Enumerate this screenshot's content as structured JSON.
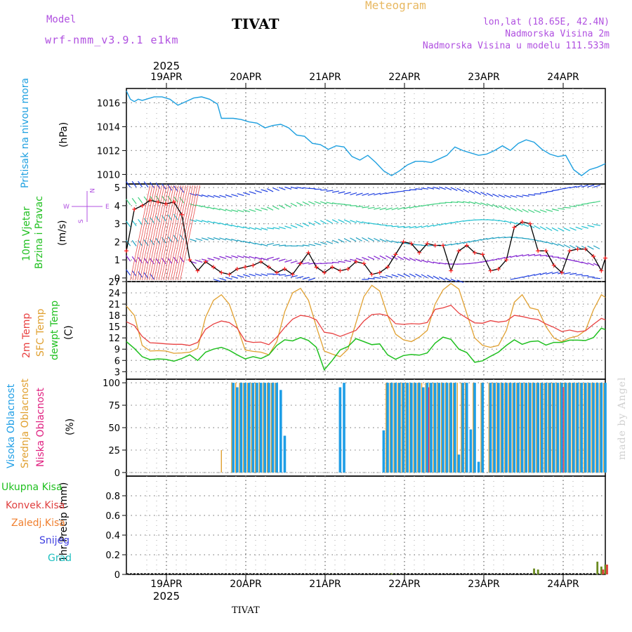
{
  "header": {
    "meteogram": "Meteogram",
    "title": "TIVAT",
    "model_label": "Model",
    "model_name": "wrf-nmm_v3.9.1 e1km",
    "lonlat": "lon,lat (18.65E, 42.4N)",
    "elev_station": "Nadmorska Visina 2m",
    "elev_model": "Nadmorska Visina u modelu 111.533m"
  },
  "footer": {
    "station": "TIVAT",
    "watermark": "made by Angel"
  },
  "panels": {
    "pressure": {
      "label": "Pritisak na nivou mora",
      "unit": "(hPa)"
    },
    "wind": {
      "label1": "10m Vjetar",
      "label2": "Brzina i Pravac",
      "unit": "(m/s)",
      "compass_w": "W",
      "compass_e": "E",
      "compass_n": "N",
      "compass_s": "S"
    },
    "temp": {
      "label1": "2m Temp",
      "label2": "SFC Temp",
      "label3": "dewpt Temp",
      "unit": "(C)"
    },
    "cloud": {
      "label1": "Visoka Oblacnost",
      "label2": "Srednja Oblacnost",
      "label3": "Niska Oblacnost",
      "unit": "(%)"
    },
    "precip": {
      "label1": "1hr Precip (mm)",
      "legend": [
        "Ukupna Kisa",
        "Konvek.Kisa",
        "Zaledj.Kisa",
        "Snijeg",
        "Grad"
      ]
    }
  },
  "colors": {
    "pressure": "#1ea0e0",
    "temp2m": "#e84040",
    "sfc": "#e0a030",
    "dewpt": "#20c020",
    "high_cloud": "#1e9ee6",
    "mid_cloud": "#e0a030",
    "low_cloud": "#e02080",
    "legend": [
      "#20c020",
      "#e04040",
      "#f08030",
      "#4040e0",
      "#20c0c0"
    ]
  },
  "chart_data": [
    {
      "type": "line",
      "title": "Pritisak na nivou mora",
      "ylabel": "(hPa)",
      "ylim": [
        1009.2,
        1017.2
      ],
      "yticks": [
        1010,
        1012,
        1014,
        1016
      ],
      "x_day_labels": [
        "19APR",
        "20APR",
        "21APR",
        "22APR",
        "23APR",
        "24APR"
      ],
      "x_year_label": "2025",
      "x_range_hours": [
        -5,
        116
      ],
      "series": [
        {
          "name": "pressure",
          "x": [
            -5,
            -4,
            -3,
            -2,
            -1,
            0,
            2,
            4,
            6,
            8,
            10,
            12,
            14,
            16,
            18,
            19,
            22,
            24,
            26,
            28,
            30,
            32,
            34,
            36,
            38,
            40,
            42,
            44,
            46,
            48,
            50,
            52,
            54,
            56,
            58,
            60,
            62,
            64,
            66,
            68,
            70,
            72,
            74,
            76,
            78,
            80,
            82,
            84,
            86,
            88,
            90,
            92,
            94,
            96,
            98,
            100,
            102,
            104,
            106,
            108,
            110,
            112,
            114,
            116
          ],
          "values": [
            1017.0,
            1016.3,
            1016.1,
            1016.3,
            1016.2,
            1016.3,
            1016.5,
            1016.5,
            1016.3,
            1015.8,
            1016.1,
            1016.4,
            1016.5,
            1016.3,
            1015.9,
            1014.7,
            1014.7,
            1014.6,
            1014.4,
            1014.3,
            1013.9,
            1014.1,
            1014.2,
            1013.9,
            1013.3,
            1013.2,
            1012.6,
            1012.5,
            1012.1,
            1012.4,
            1012.3,
            1011.5,
            1011.2,
            1011.6,
            1011.0,
            1010.3,
            1009.9,
            1010.3,
            1010.8,
            1011.1,
            1011.1,
            1011.0,
            1011.3,
            1011.6,
            1012.3,
            1012.0,
            1011.8,
            1011.6,
            1011.7,
            1012.0,
            1012.4,
            1012.0,
            1012.6,
            1012.9,
            1012.7,
            1012.1,
            1011.7,
            1011.5,
            1011.6,
            1010.4,
            1009.9,
            1010.4,
            1010.6,
            1010.9
          ]
        }
      ]
    },
    {
      "type": "line",
      "title": "10m Vjetar Brzina i Pravac",
      "ylabel": "(m/s)",
      "ylim": [
        -0.2,
        5.2
      ],
      "yticks": [
        0,
        1,
        2,
        3,
        4,
        5
      ],
      "series": [
        {
          "name": "wind speed",
          "x": [
            -5,
            -3,
            -1,
            1,
            3,
            5,
            7,
            9,
            11,
            13,
            15,
            17,
            19,
            21,
            23,
            25,
            27,
            29,
            31,
            33,
            35,
            37,
            39,
            41,
            43,
            45,
            47,
            49,
            51,
            53,
            55,
            57,
            59,
            61,
            63,
            65,
            67,
            69,
            71,
            73,
            75,
            77,
            79,
            81,
            83,
            85,
            87,
            89,
            91,
            93,
            95,
            97,
            99,
            101,
            103,
            105,
            107,
            109,
            111,
            113,
            115,
            116
          ],
          "values": [
            1.5,
            3.8,
            4.0,
            4.3,
            4.2,
            4.1,
            4.2,
            3.5,
            1.0,
            0.4,
            0.9,
            0.6,
            0.3,
            0.2,
            0.5,
            0.6,
            0.7,
            0.9,
            0.6,
            0.3,
            0.5,
            0.2,
            0.8,
            1.4,
            0.6,
            0.3,
            0.6,
            0.4,
            0.5,
            0.9,
            0.8,
            0.2,
            0.3,
            0.6,
            1.3,
            2.0,
            1.9,
            1.4,
            1.9,
            1.8,
            1.8,
            0.4,
            1.5,
            1.8,
            1.4,
            1.3,
            0.4,
            0.5,
            1.0,
            2.8,
            3.1,
            3.0,
            1.5,
            1.5,
            0.7,
            0.3,
            1.5,
            1.6,
            1.6,
            1.2,
            0.4,
            1.1
          ]
        }
      ]
    },
    {
      "type": "line",
      "title": "2m Temp / SFC Temp / dewpt Temp",
      "ylabel": "(C)",
      "ylim": [
        1,
        27
      ],
      "yticks": [
        3,
        6,
        9,
        12,
        15,
        18,
        21,
        24,
        27
      ],
      "series": [
        {
          "name": "2m Temp",
          "x": [
            -5,
            -3,
            -1,
            1,
            3,
            5,
            7,
            9,
            11,
            13,
            15,
            17,
            19,
            21,
            23,
            25,
            27,
            29,
            31,
            33,
            35,
            37,
            39,
            41,
            43,
            45,
            47,
            49,
            51,
            53,
            55,
            57,
            59,
            61,
            63,
            65,
            67,
            69,
            71,
            73,
            75,
            77,
            79,
            81,
            83,
            85,
            87,
            89,
            91,
            93,
            95,
            97,
            99,
            101,
            103,
            105,
            107,
            109,
            111,
            113,
            115,
            116
          ],
          "values": [
            16.3,
            15.3,
            12.4,
            10.7,
            10.6,
            10.4,
            10.3,
            10.3,
            10.0,
            10.8,
            14.3,
            15.7,
            16.5,
            16.1,
            14.6,
            11.2,
            10.8,
            10.9,
            10.2,
            12.2,
            14.8,
            17.0,
            18.0,
            17.7,
            16.8,
            13.5,
            13.2,
            12.4,
            13.2,
            14.0,
            16.5,
            18.2,
            18.4,
            17.9,
            15.8,
            15.6,
            15.8,
            15.7,
            16.1,
            19.6,
            20.0,
            20.7,
            18.6,
            17.3,
            16.0,
            15.9,
            16.6,
            16.2,
            16.5,
            18.0,
            17.7,
            17.2,
            16.9,
            15.7,
            14.8,
            13.7,
            14.1,
            13.6,
            13.9,
            15.6,
            17.2,
            16.8
          ]
        },
        {
          "name": "SFC Temp",
          "x": [
            -5,
            -3,
            -1,
            1,
            3,
            5,
            7,
            9,
            11,
            13,
            15,
            17,
            19,
            21,
            23,
            25,
            27,
            29,
            31,
            33,
            35,
            37,
            39,
            41,
            43,
            45,
            47,
            49,
            51,
            53,
            55,
            57,
            59,
            61,
            63,
            65,
            67,
            69,
            71,
            73,
            75,
            77,
            79,
            81,
            83,
            85,
            87,
            89,
            91,
            93,
            95,
            97,
            99,
            101,
            103,
            105,
            107,
            109,
            111,
            113,
            115,
            116
          ],
          "values": [
            20.5,
            18.0,
            10.0,
            8.5,
            8.6,
            8.5,
            7.9,
            8.0,
            8.2,
            9.2,
            17.5,
            22.0,
            23.5,
            21.0,
            15.0,
            8.8,
            8.4,
            8.2,
            7.5,
            11.0,
            19.0,
            24.0,
            25.2,
            22.0,
            15.0,
            8.5,
            7.7,
            7.0,
            9.0,
            16.0,
            23.0,
            26.0,
            24.5,
            18.0,
            13.0,
            11.5,
            11.0,
            12.2,
            14.0,
            21.0,
            24.8,
            26.5,
            25.0,
            18.5,
            12.0,
            10.0,
            9.5,
            10.0,
            14.0,
            21.5,
            23.5,
            20.0,
            19.5,
            15.0,
            12.0,
            11.0,
            12.0,
            12.5,
            14.0,
            19.5,
            23.5,
            22.8
          ]
        },
        {
          "name": "dewpt Temp",
          "x": [
            -5,
            -3,
            -1,
            1,
            3,
            5,
            7,
            9,
            11,
            13,
            15,
            17,
            19,
            21,
            23,
            25,
            27,
            29,
            31,
            33,
            35,
            37,
            39,
            41,
            43,
            45,
            47,
            49,
            51,
            53,
            55,
            57,
            59,
            61,
            63,
            65,
            67,
            69,
            71,
            73,
            75,
            77,
            79,
            81,
            83,
            85,
            87,
            89,
            91,
            93,
            95,
            97,
            99,
            101,
            103,
            105,
            107,
            109,
            111,
            113,
            115,
            116
          ],
          "values": [
            11.0,
            9.2,
            7.0,
            6.2,
            6.4,
            6.3,
            5.8,
            6.5,
            7.5,
            6.0,
            8.2,
            9.0,
            9.5,
            8.7,
            7.5,
            6.4,
            7.0,
            6.5,
            7.5,
            10.0,
            11.5,
            11.2,
            12.1,
            11.3,
            9.5,
            3.5,
            6.0,
            8.8,
            9.7,
            11.8,
            11.0,
            10.2,
            10.4,
            7.5,
            6.3,
            7.3,
            7.6,
            7.4,
            8.0,
            10.6,
            12.2,
            11.6,
            9.0,
            8.1,
            5.5,
            5.9,
            7.1,
            8.2,
            10.0,
            11.5,
            10.3,
            11.0,
            11.2,
            10.1,
            10.8,
            10.8,
            11.4,
            11.4,
            11.3,
            12.1,
            14.6,
            14.2
          ]
        }
      ]
    },
    {
      "type": "bar",
      "title": "Visoka / Srednja / Niska Oblacnost",
      "ylabel": "(%)",
      "ylim": [
        -4,
        104
      ],
      "yticks": [
        0,
        25,
        50,
        75,
        100
      ],
      "bar_hours": [
        22,
        23,
        24,
        25,
        26,
        27,
        28,
        29,
        30,
        31,
        32,
        33,
        34,
        35,
        49,
        50,
        51,
        60,
        61,
        62,
        63,
        64,
        65,
        66,
        67,
        68,
        69,
        70,
        71,
        72,
        73,
        74,
        75,
        76,
        77,
        78,
        79,
        80,
        81,
        82,
        83,
        84,
        85,
        86,
        87,
        88,
        89,
        90,
        91,
        92,
        93,
        94,
        95,
        96,
        97,
        98,
        99,
        100,
        101,
        102,
        103,
        104,
        105,
        106,
        107,
        108,
        109,
        110,
        111,
        112,
        113,
        114,
        115,
        116
      ],
      "series": [
        {
          "name": "Visoka Oblacnost",
          "values": [
            100,
            95,
            100,
            100,
            100,
            100,
            100,
            100,
            100,
            100,
            100,
            100,
            92,
            41,
            95,
            100,
            0,
            47,
            100,
            100,
            100,
            100,
            100,
            100,
            100,
            100,
            100,
            95,
            100,
            100,
            100,
            100,
            100,
            100,
            100,
            100,
            20,
            100,
            100,
            48,
            100,
            12,
            100,
            0,
            100,
            100,
            100,
            100,
            100,
            100,
            100,
            100,
            100,
            100,
            100,
            100,
            100,
            100,
            100,
            100,
            100,
            100,
            100,
            100,
            100,
            100,
            100,
            100,
            100,
            100,
            100,
            100,
            100,
            100
          ]
        },
        {
          "name": "Srednja Oblacnost",
          "values": [
            100,
            100,
            100,
            100,
            100,
            100,
            100,
            100,
            100,
            100,
            100,
            100,
            0,
            0,
            0,
            0,
            0,
            0,
            100,
            100,
            100,
            100,
            100,
            100,
            100,
            100,
            100,
            100,
            100,
            100,
            100,
            100,
            100,
            100,
            100,
            100,
            100,
            100,
            100,
            0,
            100,
            0,
            100,
            0,
            100,
            100,
            100,
            100,
            100,
            100,
            100,
            100,
            100,
            100,
            100,
            100,
            100,
            100,
            100,
            100,
            100,
            100,
            100,
            100,
            100,
            100,
            100,
            100,
            100,
            100,
            100,
            100,
            100,
            100
          ]
        },
        {
          "name": "Niska Oblacnost",
          "values": [
            0,
            0,
            0,
            0,
            0,
            0,
            0,
            0,
            0,
            0,
            0,
            0,
            0,
            0,
            0,
            0,
            0,
            0,
            0,
            0,
            0,
            0,
            0,
            0,
            0,
            0,
            0,
            0,
            95,
            0,
            0,
            0,
            0,
            0,
            0,
            0,
            0,
            0,
            0,
            0,
            0,
            0,
            0,
            0,
            0,
            0,
            0,
            0,
            0,
            0,
            0,
            0,
            0,
            0,
            0,
            0,
            0,
            0,
            0,
            0,
            0,
            0,
            95,
            0,
            0,
            0,
            0,
            0,
            0,
            0,
            0,
            0,
            0,
            0
          ]
        }
      ],
      "extra_bars": [
        {
          "hour": 19,
          "series": "Srednja Oblacnost",
          "value": 25
        }
      ]
    },
    {
      "type": "bar",
      "title": "1hr Precip (mm)",
      "ylabel": "1hr Precip (mm)",
      "ylim": [
        0,
        1.0
      ],
      "yticks": [
        0,
        0.2,
        0.4,
        0.6,
        0.8
      ],
      "series": [
        {
          "name": "Ukupna Kisa",
          "x": [
            62,
            98,
            99,
            114,
            115,
            116
          ],
          "values": [
            0.01,
            0.06,
            0.05,
            0.13,
            0.08,
            0.1
          ]
        },
        {
          "name": "Konvek.Kisa",
          "x": [
            115,
            116
          ],
          "values": [
            0.05,
            0.1
          ]
        }
      ]
    }
  ]
}
